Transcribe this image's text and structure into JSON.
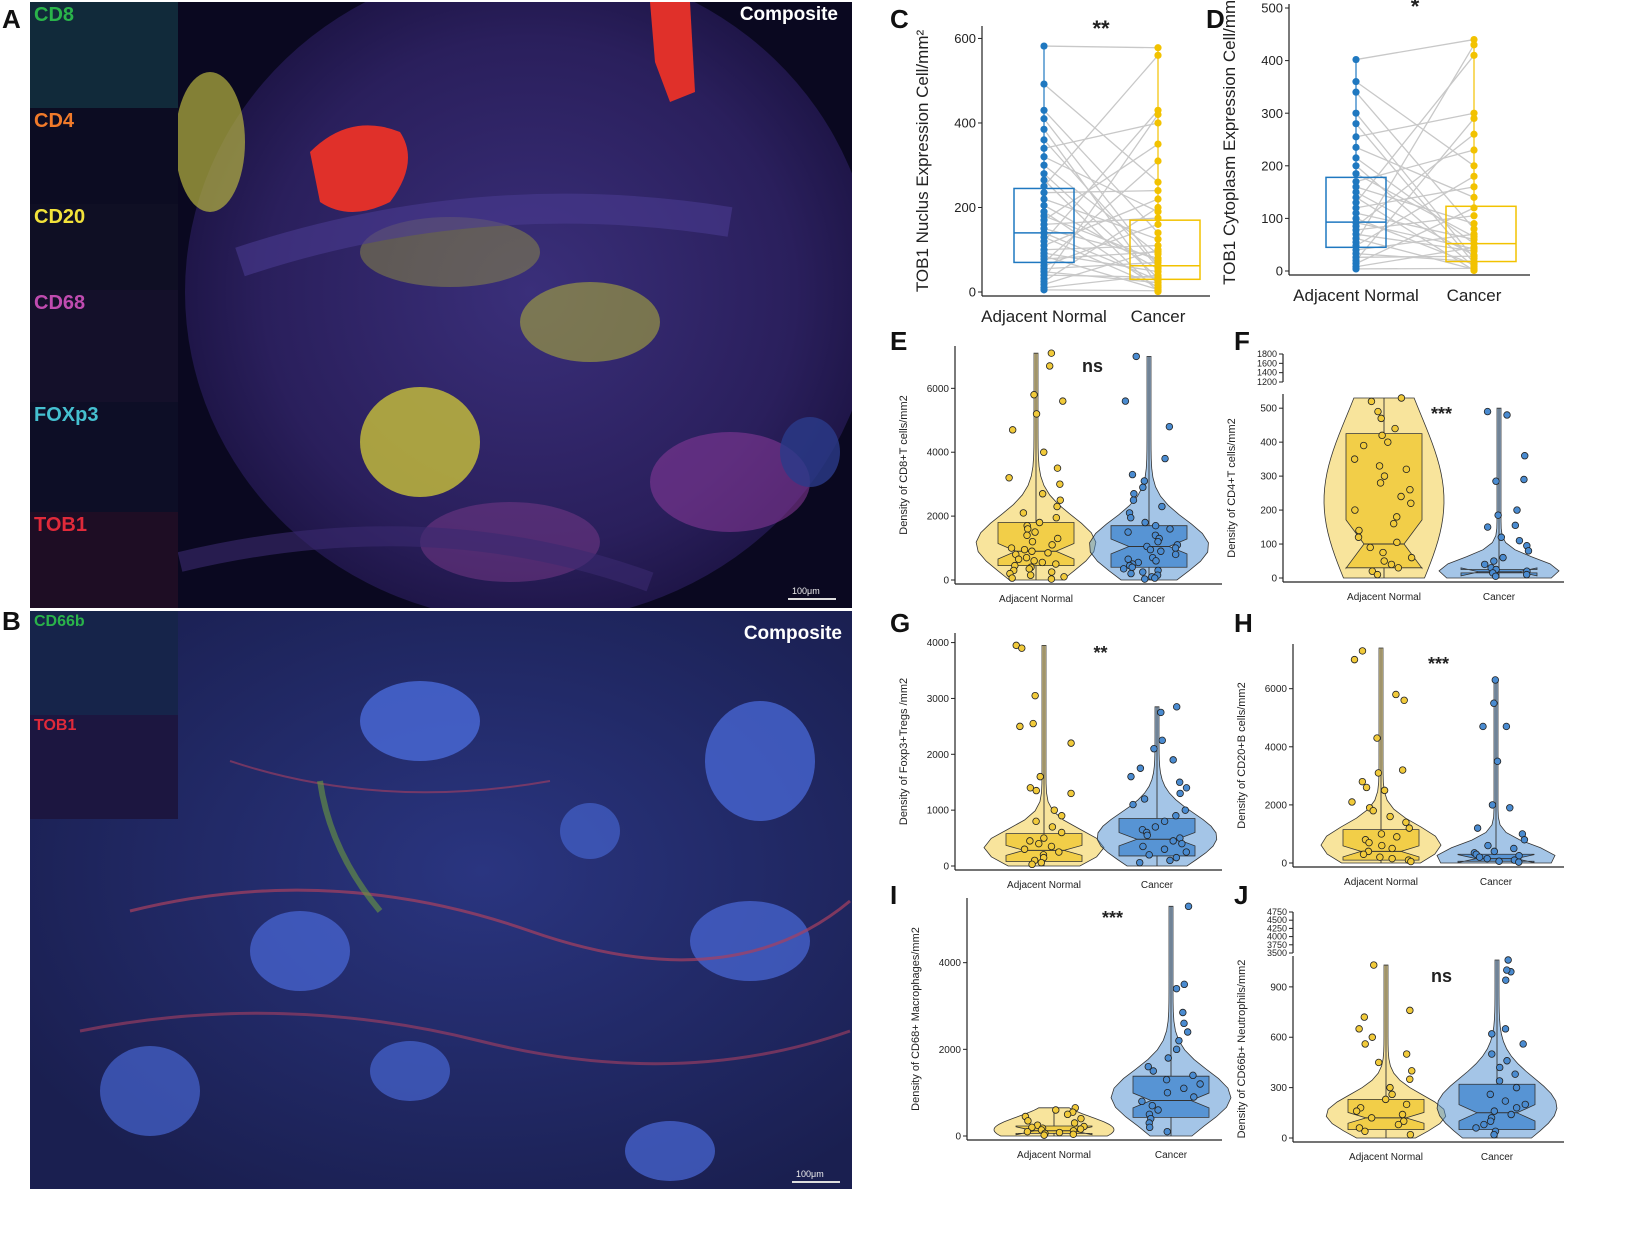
{
  "panel_letters": {
    "A": "A",
    "B": "B",
    "C": "C",
    "D": "D",
    "E": "E",
    "F": "F",
    "G": "G",
    "H": "H",
    "I": "I",
    "J": "J"
  },
  "micrograph_a": {
    "composite_label": "Composite",
    "scale_label": "100μm",
    "channels": [
      {
        "label": "CD8",
        "color": "#2ab34a"
      },
      {
        "label": "CD4",
        "color": "#f07a2a"
      },
      {
        "label": "CD20",
        "color": "#f2e23a"
      },
      {
        "label": "CD68",
        "color": "#c04bb0"
      },
      {
        "label": "FOXp3",
        "color": "#45c0d0"
      },
      {
        "label": "TOB1",
        "color": "#e02a3a"
      }
    ]
  },
  "micrograph_b": {
    "composite_label": "Composite",
    "scale_label": "100μm",
    "channels": [
      {
        "label": "CD66b",
        "color": "#2ab34a"
      },
      {
        "label": "TOB1",
        "color": "#e02a3a"
      }
    ]
  },
  "colors": {
    "normal_blue": "#1f78c0",
    "cancer_gold": "#f2c200",
    "violin_gold": "#f1ca3a",
    "violin_blue": "#4a8bd0",
    "pair_line": "#c8c8c8"
  },
  "chart_data": [
    {
      "panel": "C",
      "type": "box",
      "paired": true,
      "categories": [
        "Adjacent Normal",
        "Cancer"
      ],
      "ylabel": "TOB1 Nuclus Expression Cell/mm²",
      "ylim": [
        0,
        620
      ],
      "yticks": [
        0,
        200,
        400,
        600
      ],
      "significance": "**",
      "box": [
        {
          "q1": 70,
          "median": 140,
          "q3": 245,
          "whisker_low": 0,
          "whisker_high": 580
        },
        {
          "q1": 30,
          "median": 62,
          "q3": 170,
          "whisker_low": 0,
          "whisker_high": 575
        }
      ],
      "points": [
        [
          582,
          492,
          430,
          410,
          385,
          360,
          340,
          320,
          300,
          280,
          265,
          250,
          235,
          220,
          205,
          190,
          180,
          170,
          160,
          150,
          140,
          130,
          120,
          110,
          100,
          92,
          85,
          78,
          70,
          62,
          55,
          48,
          40,
          32,
          25,
          18,
          10,
          5
        ],
        [
          578,
          560,
          430,
          420,
          400,
          350,
          310,
          260,
          240,
          220,
          200,
          190,
          175,
          160,
          140,
          125,
          110,
          100,
          90,
          80,
          70,
          62,
          55,
          48,
          40,
          33,
          28,
          22,
          16,
          10,
          6,
          3,
          1,
          12,
          35,
          58,
          75,
          95
        ]
      ]
    },
    {
      "panel": "D",
      "type": "box",
      "paired": true,
      "categories": [
        "Adjacent Normal",
        "Cancer"
      ],
      "ylabel": "TOB1 Cytoplasm Expression Cell/mm²",
      "ylim": [
        0,
        500
      ],
      "yticks": [
        0,
        100,
        200,
        300,
        400,
        500
      ],
      "significance": "*",
      "box": [
        {
          "q1": 45,
          "median": 93,
          "q3": 178,
          "whisker_low": 0,
          "whisker_high": 400
        },
        {
          "q1": 18,
          "median": 52,
          "q3": 123,
          "whisker_low": 0,
          "whisker_high": 440
        }
      ],
      "points": [
        [
          402,
          360,
          340,
          300,
          280,
          255,
          235,
          215,
          200,
          185,
          170,
          160,
          150,
          140,
          130,
          120,
          110,
          100,
          92,
          85,
          78,
          70,
          62,
          55,
          48,
          40,
          33,
          26,
          20,
          14,
          8,
          4
        ],
        [
          440,
          430,
          410,
          300,
          290,
          260,
          230,
          200,
          180,
          160,
          140,
          120,
          105,
          90,
          80,
          70,
          60,
          52,
          45,
          38,
          30,
          24,
          18,
          12,
          8,
          5,
          3,
          1,
          15,
          28,
          42,
          65
        ]
      ]
    },
    {
      "panel": "E",
      "type": "violin",
      "categories": [
        "Adjacent Normal",
        "Cancer"
      ],
      "ylabel": "Density of CD8+T cells/mm2",
      "ylim": [
        0,
        7200
      ],
      "yticks": [
        0,
        2000,
        4000,
        6000
      ],
      "significance": "ns",
      "box": [
        {
          "q1": 450,
          "median": 900,
          "q3": 1800,
          "whisker_low": 0,
          "whisker_high": 7100
        },
        {
          "q1": 400,
          "median": 1050,
          "q3": 1700,
          "whisker_low": 0,
          "whisker_high": 7000
        }
      ],
      "points": [
        [
          7100,
          6700,
          5800,
          5600,
          5200,
          4700,
          4000,
          3500,
          3200,
          3000,
          2700,
          2500,
          2300,
          2100,
          1950,
          1800,
          1700,
          1600,
          1500,
          1400,
          1300,
          1200,
          1100,
          1000,
          950,
          900,
          850,
          800,
          700,
          650,
          600,
          550,
          500,
          450,
          400,
          350,
          300,
          250,
          200,
          150,
          100,
          60,
          30
        ],
        [
          7000,
          5600,
          4800,
          3800,
          3300,
          3100,
          2900,
          2700,
          2500,
          2300,
          2100,
          1950,
          1800,
          1700,
          1600,
          1500,
          1400,
          1300,
          1200,
          1100,
          1050,
          1000,
          950,
          900,
          800,
          700,
          650,
          600,
          550,
          500,
          450,
          400,
          350,
          300,
          250,
          200,
          150,
          100,
          60,
          30
        ]
      ]
    },
    {
      "panel": "F",
      "type": "violin",
      "notched": true,
      "categories": [
        "Adjacent Normal",
        "Cancer"
      ],
      "ylabel": "Density of CD4+T cells/mm2",
      "ylim": [
        0,
        530
      ],
      "yticks": [
        0,
        100,
        200,
        300,
        400,
        500
      ],
      "ybreak_ticks": [
        "1200",
        "1400",
        "1600",
        "1800"
      ],
      "significance": "***",
      "box": [
        {
          "q1": 30,
          "median": 100,
          "q3": 425,
          "whisker_low": 0,
          "whisker_high": 530
        },
        {
          "q1": 15,
          "median": 18,
          "q3": 25,
          "whisker_low": 0,
          "whisker_high": 500
        }
      ],
      "points": [
        [
          530,
          520,
          490,
          470,
          440,
          420,
          400,
          390,
          350,
          330,
          320,
          300,
          280,
          260,
          240,
          220,
          200,
          180,
          160,
          140,
          120,
          105,
          90,
          75,
          60,
          50,
          40,
          30,
          20,
          10
        ],
        [
          490,
          480,
          360,
          290,
          285,
          200,
          185,
          155,
          150,
          120,
          110,
          95,
          80,
          60,
          50,
          40,
          30,
          25,
          20,
          15,
          10,
          5
        ]
      ]
    },
    {
      "panel": "G",
      "type": "violin",
      "categories": [
        "Adjacent Normal",
        "Cancer"
      ],
      "ylabel": "Density of Foxp3+Tregs /mm2",
      "ylim": [
        0,
        4100
      ],
      "yticks": [
        0,
        1000,
        2000,
        3000,
        4000
      ],
      "significance": "**",
      "box": [
        {
          "q1": 80,
          "median": 280,
          "q3": 580,
          "whisker_low": 0,
          "whisker_high": 3950
        },
        {
          "q1": 180,
          "median": 480,
          "q3": 850,
          "whisker_low": 0,
          "whisker_high": 2850
        }
      ],
      "points": [
        [
          3950,
          3900,
          3050,
          2550,
          2500,
          2200,
          1600,
          1400,
          1350,
          1300,
          1000,
          900,
          800,
          700,
          600,
          500,
          450,
          400,
          350,
          300,
          250,
          200,
          150,
          100,
          60,
          30
        ],
        [
          2850,
          2750,
          2250,
          2100,
          1900,
          1750,
          1600,
          1500,
          1400,
          1300,
          1200,
          1100,
          1000,
          900,
          800,
          700,
          650,
          600,
          550,
          500,
          450,
          400,
          350,
          300,
          250,
          200,
          150,
          100,
          60
        ]
      ]
    },
    {
      "panel": "H",
      "type": "violin",
      "notched": true,
      "categories": [
        "Adjacent Normal",
        "Cancer"
      ],
      "ylabel": "Density of CD20+B cells/mm2",
      "ylim": [
        0,
        7400
      ],
      "yticks": [
        0,
        2000,
        4000,
        6000
      ],
      "significance": "***",
      "box": [
        {
          "q1": 100,
          "median": 400,
          "q3": 1150,
          "whisker_low": 0,
          "whisker_high": 7400
        },
        {
          "q1": 60,
          "median": 150,
          "q3": 300,
          "whisker_low": 0,
          "whisker_high": 6300
        }
      ],
      "points": [
        [
          7300,
          7000,
          5800,
          5600,
          4300,
          3200,
          3100,
          2800,
          2600,
          2500,
          2100,
          1900,
          1800,
          1600,
          1400,
          1200,
          1000,
          900,
          800,
          700,
          600,
          500,
          400,
          300,
          200,
          150,
          100,
          50
        ],
        [
          6300,
          5500,
          4700,
          4700,
          3500,
          2000,
          1900,
          1200,
          1000,
          800,
          600,
          500,
          400,
          350,
          300,
          250,
          200,
          150,
          100,
          60,
          30
        ]
      ]
    },
    {
      "panel": "I",
      "type": "violin",
      "notched": true,
      "categories": [
        "Adjacent Normal",
        "Cancer"
      ],
      "ylabel": "Density of CD68+ Macrophages/mm2",
      "ylim": [
        0,
        5400
      ],
      "yticks": [
        0,
        2000,
        4000
      ],
      "significance": "***",
      "box": [
        {
          "q1": 60,
          "median": 120,
          "q3": 230,
          "whisker_low": 0,
          "whisker_high": 650
        },
        {
          "q1": 430,
          "median": 820,
          "q3": 1380,
          "whisker_low": 0,
          "whisker_high": 5300
        }
      ],
      "points": [
        [
          650,
          600,
          550,
          500,
          450,
          400,
          350,
          300,
          250,
          220,
          200,
          180,
          160,
          140,
          120,
          100,
          80,
          60,
          40,
          20
        ],
        [
          5300,
          3500,
          3400,
          2850,
          2600,
          2400,
          2200,
          2000,
          1800,
          1600,
          1500,
          1400,
          1300,
          1200,
          1100,
          1000,
          900,
          800,
          700,
          600,
          500,
          400,
          300,
          200,
          100
        ]
      ]
    },
    {
      "panel": "J",
      "type": "violin",
      "notched": true,
      "categories": [
        "Adjacent Normal",
        "Cancer"
      ],
      "ylabel": "Density of CD66b+ Neutrophils/mm2",
      "ylim": [
        0,
        1060
      ],
      "yticks": [
        0,
        300,
        600,
        900
      ],
      "ybreak_ticks": [
        "3500",
        "3750",
        "4000",
        "4250",
        "4500",
        "4750"
      ],
      "significance": "ns",
      "box": [
        {
          "q1": 50,
          "median": 120,
          "q3": 230,
          "whisker_low": 0,
          "whisker_high": 1030
        },
        {
          "q1": 50,
          "median": 150,
          "q3": 320,
          "whisker_low": 0,
          "whisker_high": 1060
        }
      ],
      "points": [
        [
          1030,
          760,
          720,
          650,
          600,
          560,
          500,
          450,
          400,
          350,
          300,
          260,
          230,
          200,
          180,
          160,
          140,
          120,
          100,
          80,
          60,
          40,
          20
        ],
        [
          1060,
          990,
          1000,
          940,
          650,
          620,
          560,
          500,
          460,
          420,
          380,
          340,
          300,
          260,
          220,
          200,
          180,
          160,
          140,
          120,
          100,
          80,
          60,
          40,
          20
        ]
      ]
    }
  ]
}
